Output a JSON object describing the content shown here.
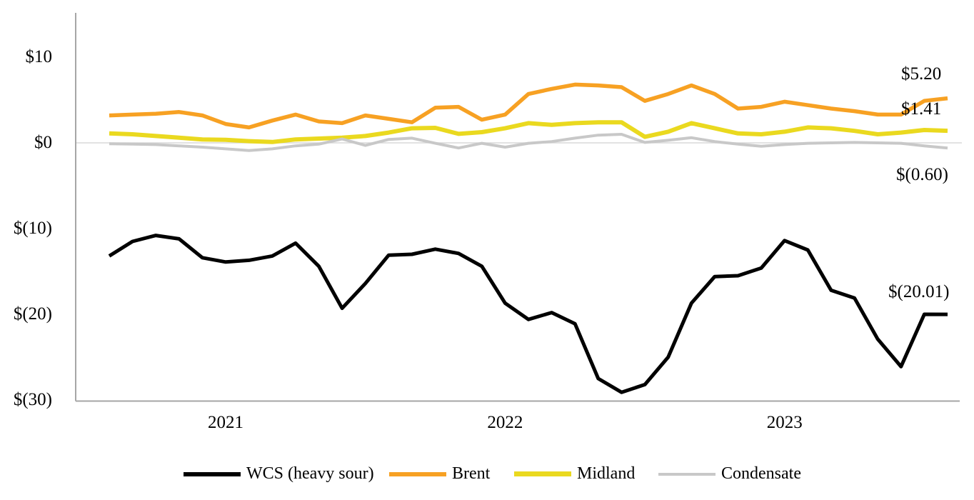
{
  "chart_data": {
    "type": "line",
    "title": "",
    "y_axis": {
      "ticks": [
        {
          "label": "$10",
          "value": 10
        },
        {
          "label": "$0",
          "value": 0
        },
        {
          "label": "$(10)",
          "value": -10
        },
        {
          "label": "$(20)",
          "value": -20
        },
        {
          "label": "$(30)",
          "value": -30
        }
      ],
      "range": [
        -30,
        15
      ],
      "gridline_at_value": 0,
      "grid": "only-zero-line"
    },
    "x_axis": {
      "points_count": 37,
      "year_labels": [
        {
          "label": "2021",
          "month_index": 5
        },
        {
          "label": "2022",
          "month_index": 17
        },
        {
          "label": "2023",
          "month_index": 29
        }
      ]
    },
    "legend_position": "bottom",
    "series": [
      {
        "name": "WCS (heavy sour)",
        "color": "#000000",
        "stroke_width": 5,
        "end_label": "$(20.01)",
        "values": [
          -13.2,
          -11.5,
          -10.8,
          -11.2,
          -13.4,
          -13.9,
          -13.7,
          -13.2,
          -11.7,
          -14.4,
          -19.3,
          -16.4,
          -13.1,
          -13.0,
          -12.4,
          -12.9,
          -14.4,
          -18.7,
          -20.6,
          -19.8,
          -21.1,
          -27.5,
          -29.1,
          -28.2,
          -25.0,
          -18.7,
          -15.6,
          -15.5,
          -14.6,
          -11.4,
          -12.5,
          -17.2,
          -18.1,
          -22.9,
          -26.1,
          -20.0,
          -20.01
        ]
      },
      {
        "name": "Brent",
        "color": "#F7A123",
        "stroke_width": 5.5,
        "end_label": "$5.20",
        "values": [
          3.2,
          3.3,
          3.4,
          3.6,
          3.2,
          2.2,
          1.8,
          2.6,
          3.3,
          2.5,
          2.3,
          3.2,
          2.8,
          2.4,
          4.1,
          4.2,
          2.7,
          3.3,
          5.7,
          6.3,
          6.8,
          6.7,
          6.5,
          4.9,
          5.7,
          6.7,
          5.7,
          4.0,
          4.2,
          4.8,
          4.4,
          4.0,
          3.7,
          3.3,
          3.3,
          4.9,
          5.2
        ]
      },
      {
        "name": "Midland",
        "color": "#EAD91F",
        "stroke_width": 6,
        "end_label": "$1.41",
        "values": [
          1.1,
          1.0,
          0.8,
          0.6,
          0.4,
          0.35,
          0.2,
          0.1,
          0.4,
          0.5,
          0.6,
          0.8,
          1.2,
          1.7,
          1.75,
          1.05,
          1.25,
          1.7,
          2.3,
          2.1,
          2.3,
          2.4,
          2.4,
          0.7,
          1.3,
          2.3,
          1.7,
          1.1,
          1.0,
          1.3,
          1.8,
          1.7,
          1.4,
          1.0,
          1.2,
          1.5,
          1.41
        ]
      },
      {
        "name": "Condensate",
        "color": "#C8C8C8",
        "stroke_width": 4,
        "end_label": "$(0.60)",
        "values": [
          -0.1,
          -0.15,
          -0.2,
          -0.35,
          -0.5,
          -0.7,
          -0.9,
          -0.7,
          -0.35,
          -0.15,
          0.45,
          -0.3,
          0.4,
          0.55,
          -0.05,
          -0.6,
          -0.05,
          -0.5,
          -0.05,
          0.15,
          0.55,
          0.9,
          1.0,
          0.05,
          0.3,
          0.6,
          0.15,
          -0.15,
          -0.4,
          -0.2,
          -0.05,
          0.0,
          0.05,
          0.0,
          -0.05,
          -0.35,
          -0.6
        ]
      }
    ],
    "axis_color": "#A6A6A6",
    "zero_gridline_color": "#D9D9D9"
  },
  "annotations": {
    "brent_end": "$5.20",
    "midland_end": "$1.41",
    "condensate_end": "$(0.60)",
    "wcs_end": "$(20.01)"
  },
  "legend": {
    "items": [
      {
        "label": "WCS (heavy sour)",
        "color": "#000000"
      },
      {
        "label": "Brent",
        "color": "#F7A123"
      },
      {
        "label": "Midland",
        "color": "#EAD91F"
      },
      {
        "label": "Condensate",
        "color": "#C8C8C8"
      }
    ]
  }
}
